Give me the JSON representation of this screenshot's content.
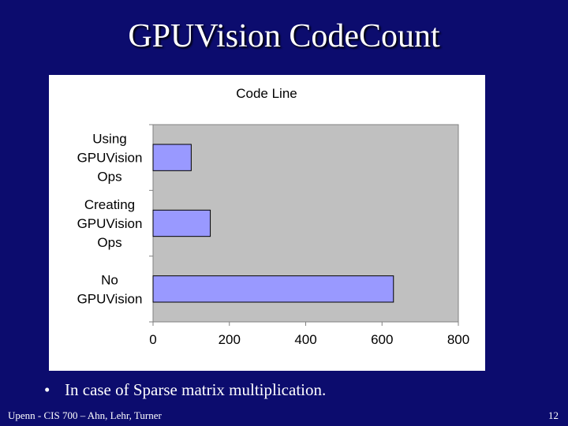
{
  "slide": {
    "title": "GPUVision CodeCount",
    "bullet": "In case of  Sparse matrix multiplication.",
    "bullet_marker": "•",
    "footer_left": "Upenn - CIS 700 – Ahn, Lehr, Turner",
    "page_number": "12"
  },
  "colors": {
    "background": "#0c0c6e",
    "plot_area": "#c0c0c0",
    "bar_fill": "#9999ff",
    "bar_stroke": "#000000"
  },
  "chart_data": {
    "type": "bar",
    "orientation": "horizontal",
    "title": "Code Line",
    "categories": [
      "Using GPUVision Ops",
      "Creating GPUVision Ops",
      "No GPUVision"
    ],
    "category_label_lines": [
      [
        "Using",
        "GPUVision",
        "Ops"
      ],
      [
        "Creating",
        "GPUVision",
        "Ops"
      ],
      [
        "No",
        "GPUVision"
      ]
    ],
    "values": [
      100,
      150,
      630
    ],
    "xlim": [
      0,
      800
    ],
    "x_ticks": [
      0,
      200,
      400,
      600,
      800
    ],
    "xlabel": "",
    "ylabel": "",
    "grid": false,
    "legend": "none"
  }
}
